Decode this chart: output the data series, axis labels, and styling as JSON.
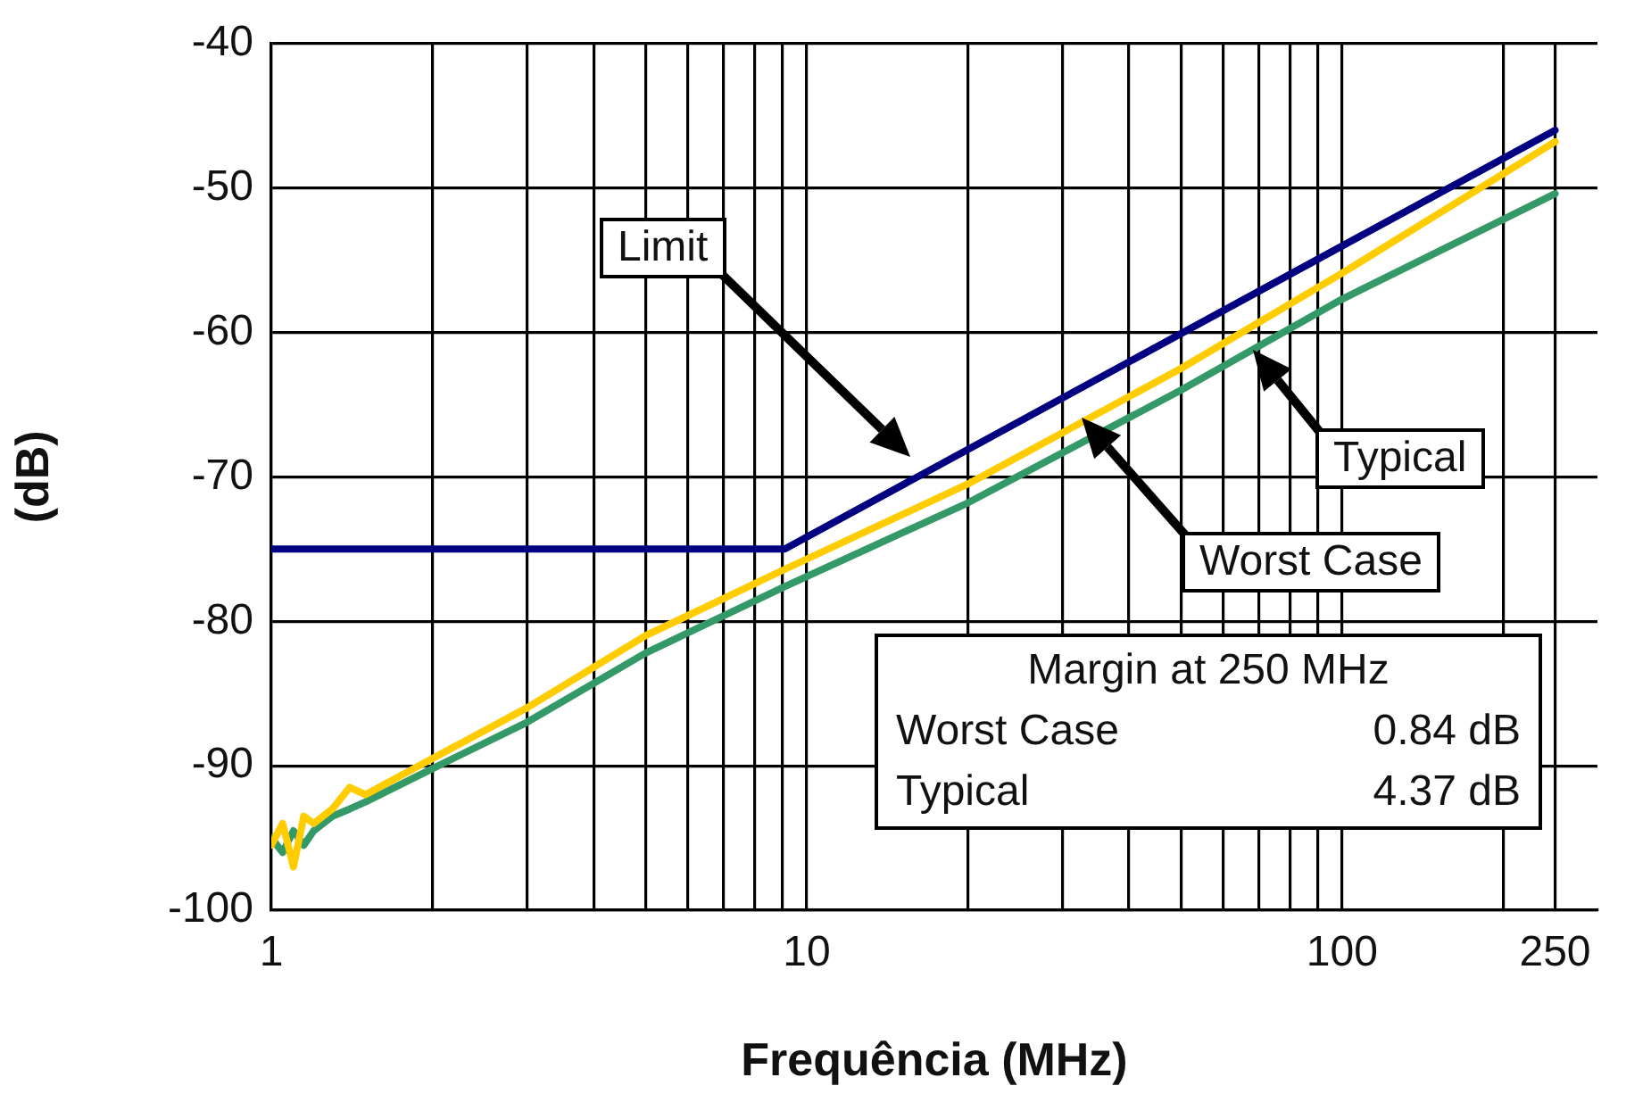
{
  "chart_data": {
    "type": "line",
    "xlabel": "Frequência (MHz)",
    "ylabel": "(dB)",
    "log": "x",
    "grid": true,
    "legend": false,
    "marker": "none",
    "line_style": "solid",
    "xlim": [
      1,
      300
    ],
    "ylim": [
      -100,
      -40
    ],
    "xticks": [
      1,
      {
        "value": 2,
        "label": null
      },
      {
        "value": 3,
        "label": null
      },
      {
        "value": 4,
        "label": null
      },
      {
        "value": 5,
        "label": null
      },
      {
        "value": 6,
        "label": null
      },
      {
        "value": 7,
        "label": null
      },
      {
        "value": 8,
        "label": null
      },
      {
        "value": 9,
        "label": null
      },
      10,
      {
        "value": 20,
        "label": null
      },
      {
        "value": 30,
        "label": null
      },
      {
        "value": 40,
        "label": null
      },
      {
        "value": 50,
        "label": null
      },
      {
        "value": 60,
        "label": null
      },
      {
        "value": 70,
        "label": null
      },
      {
        "value": 80,
        "label": null
      },
      {
        "value": 90,
        "label": null
      },
      100,
      {
        "value": 200,
        "label": null
      },
      250
    ],
    "yticks": [
      -100,
      -90,
      -80,
      -70,
      -60,
      -50,
      -40
    ],
    "series": [
      {
        "color": "#000080",
        "x": [
          1,
          9.1,
          250
        ],
        "values": [
          -75,
          -75,
          -46
        ]
      },
      {
        "color": "#ffcc00",
        "x": [
          1,
          1.05,
          1.1,
          1.15,
          1.2,
          1.3,
          1.4,
          1.5,
          2,
          3,
          5,
          9.1,
          20,
          50,
          100,
          250
        ],
        "values": [
          -95.5,
          -94,
          -97,
          -93.5,
          -94,
          -93,
          -91.5,
          -92,
          -89.5,
          -86,
          -81,
          -76.4,
          -70.5,
          -62.5,
          -55.9,
          -46.8
        ]
      },
      {
        "color": "#339966",
        "x": [
          1,
          1.05,
          1.1,
          1.15,
          1.2,
          1.3,
          1.4,
          1.5,
          2,
          3,
          5,
          9.1,
          20,
          50,
          100,
          250
        ],
        "values": [
          -95,
          -96,
          -94.5,
          -95.5,
          -94.5,
          -93.5,
          -93,
          -92.5,
          -90.2,
          -87,
          -82.2,
          -77.6,
          -71.8,
          -64,
          -57.7,
          -50.4
        ]
      }
    ],
    "annotations": [
      "Limit",
      "Worst Case",
      "Typical",
      "Margin at 250 MHz",
      "Worst Case",
      "0.84 dB",
      "Typical",
      "4.37 dB"
    ]
  }
}
